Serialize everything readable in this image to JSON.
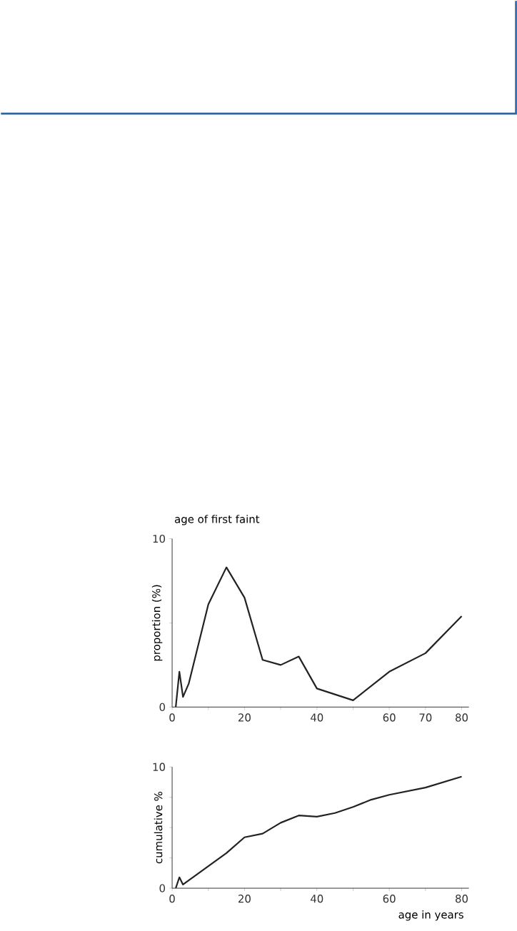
{
  "chart_data": [
    {
      "type": "line",
      "title": "age of first faint",
      "ylabel": "proportion (%)",
      "color": "#222222",
      "x": [
        1,
        2,
        3,
        4.6,
        10,
        15,
        20,
        25,
        30,
        35,
        40,
        50,
        60,
        70,
        80
      ],
      "values": [
        0,
        2.1,
        0.6,
        1.4,
        6.1,
        8.3,
        6.5,
        2.8,
        2.5,
        3.0,
        1.1,
        0.4,
        2.1,
        3.2,
        5.4
      ],
      "xlim": [
        0,
        82
      ],
      "ylim": [
        0,
        10
      ],
      "xticks": [
        0,
        {
          "value": 10,
          "label": null
        },
        20,
        {
          "value": 30,
          "label": null
        },
        40,
        {
          "value": 50,
          "label": null
        },
        60,
        70,
        80
      ],
      "yticks": [
        0,
        {
          "value": 5,
          "label": null
        },
        10
      ]
    },
    {
      "type": "line",
      "ylabel": "cumulative %",
      "xlabel": "age in years",
      "color": "#222222",
      "x": [
        1,
        2,
        3,
        15,
        20,
        25,
        30,
        35,
        40,
        45,
        50,
        55,
        60,
        70,
        80
      ],
      "values": [
        0,
        0.9,
        0.3,
        2.9,
        4.2,
        4.5,
        5.4,
        6.0,
        5.9,
        6.2,
        6.7,
        7.3,
        7.7,
        8.3,
        9.2
      ],
      "xlim": [
        0,
        82
      ],
      "ylim": [
        0,
        10
      ],
      "xticks": [
        0,
        {
          "value": 10,
          "label": null
        },
        20,
        {
          "value": 30,
          "label": null
        },
        40,
        {
          "value": 50,
          "label": null
        },
        60,
        {
          "value": 70,
          "label": null
        },
        80
      ],
      "yticks": [
        0,
        {
          "value": 2.5,
          "label": null
        },
        {
          "value": 5,
          "label": null
        },
        {
          "value": 7.5,
          "label": null
        },
        10
      ]
    }
  ]
}
